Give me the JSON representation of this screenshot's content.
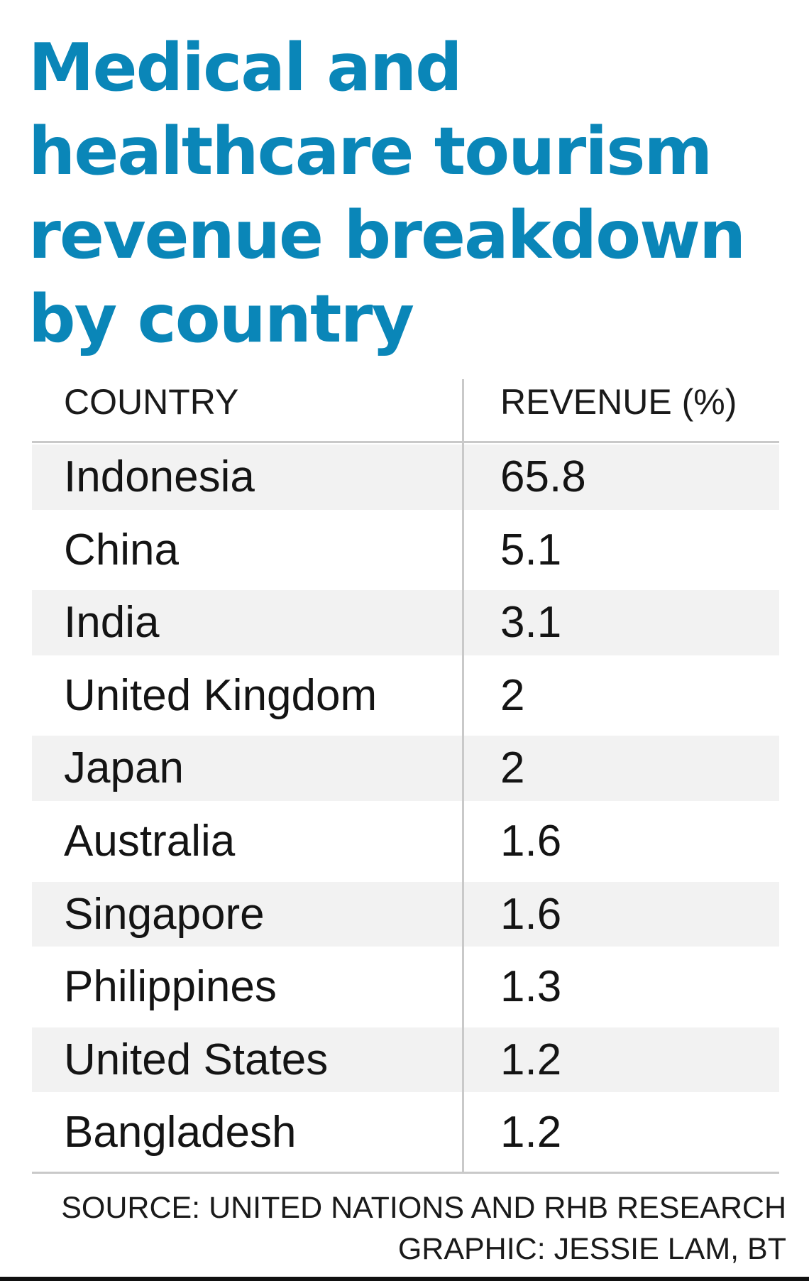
{
  "chart_data": {
    "type": "table",
    "title": "Medical and healthcare tourism revenue breakdown by country",
    "columns": [
      "COUNTRY",
      "REVENUE (%)"
    ],
    "rows": [
      {
        "country": "Indonesia",
        "revenue": "65.8"
      },
      {
        "country": "China",
        "revenue": "5.1"
      },
      {
        "country": "India",
        "revenue": "3.1"
      },
      {
        "country": "United Kingdom",
        "revenue": "2"
      },
      {
        "country": "Japan",
        "revenue": "2"
      },
      {
        "country": "Australia",
        "revenue": "1.6"
      },
      {
        "country": "Singapore",
        "revenue": "1.6"
      },
      {
        "country": "Philippines",
        "revenue": "1.3"
      },
      {
        "country": "United States",
        "revenue": "1.2"
      },
      {
        "country": "Bangladesh",
        "revenue": "1.2"
      }
    ],
    "source": "SOURCE: UNITED NATIONS AND RHB RESEARCH",
    "credit": "GRAPHIC: JESSIE LAM, BT"
  },
  "colors": {
    "title": "#0a86b8",
    "row_shade": "#f2f2f2",
    "rule": "#c9c9c9",
    "text": "#141414"
  }
}
